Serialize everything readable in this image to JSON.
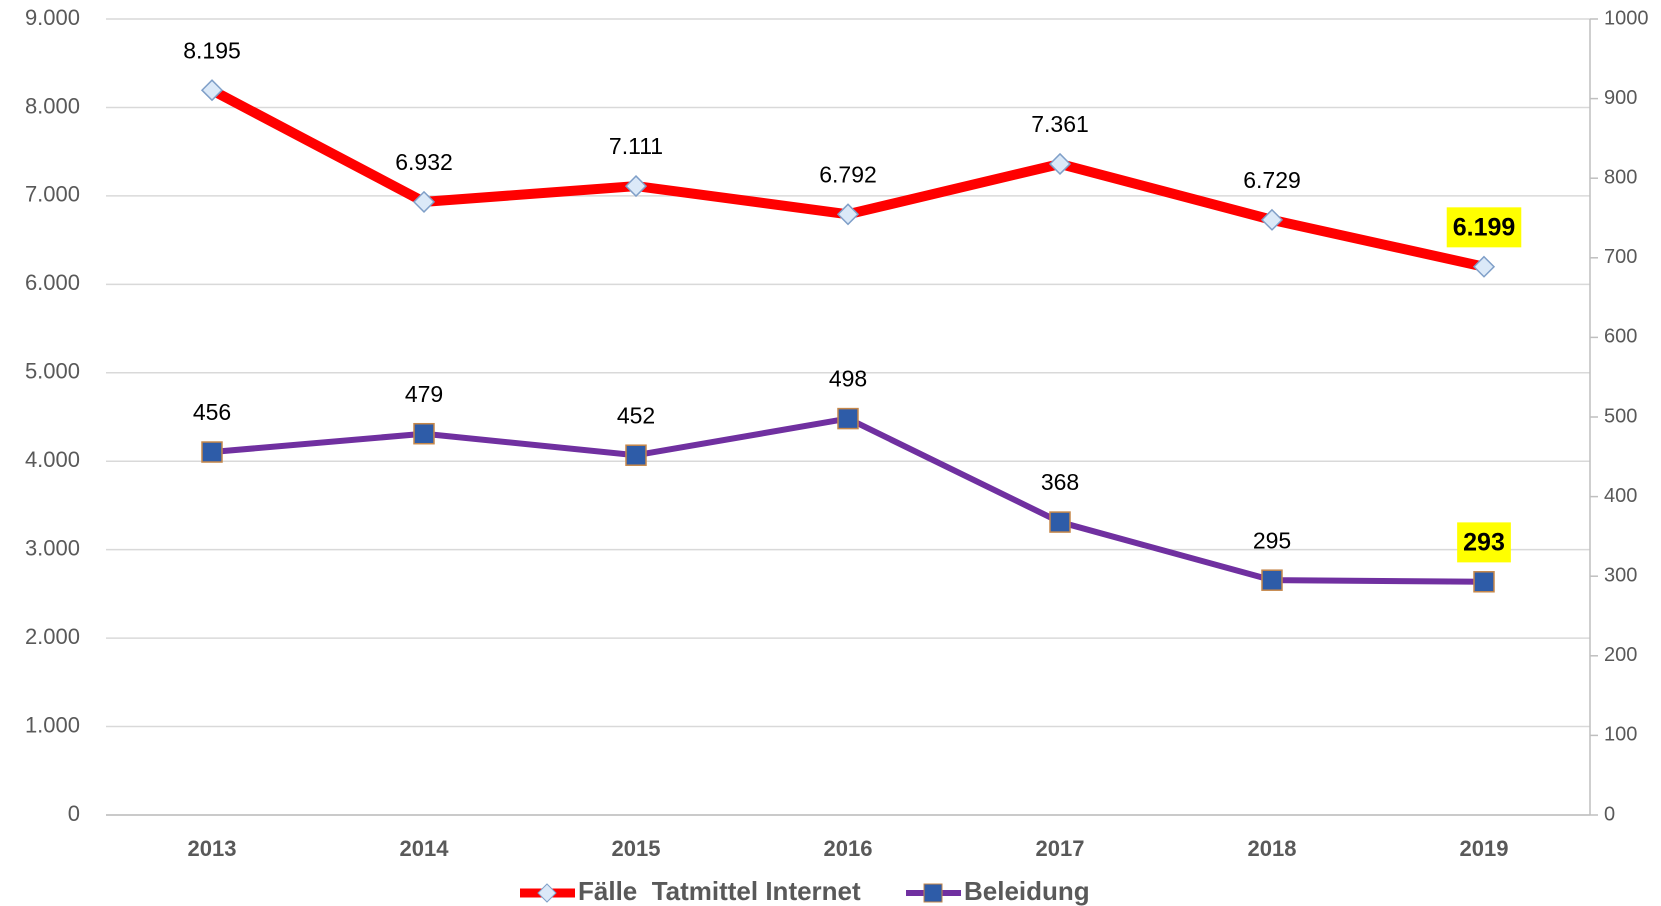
{
  "chart_data": {
    "type": "line",
    "categories": [
      "2013",
      "2014",
      "2015",
      "2016",
      "2017",
      "2018",
      "2019"
    ],
    "series": [
      {
        "name": "Fälle  Tatmittel Internet",
        "color": "#ff0000",
        "marker_color": "#dbe9f8",
        "values": [
          8195,
          6932,
          7111,
          6792,
          7361,
          6729,
          6199
        ],
        "value_labels": [
          "8.195",
          "6.932",
          "7.111",
          "6.792",
          "7.361",
          "6.729",
          "6.199"
        ]
      },
      {
        "name": "Beleidung",
        "color": "#7030a0",
        "marker_color": "#2e5ca8",
        "axis": "y2",
        "values": [
          456,
          479,
          452,
          498,
          368,
          295,
          293
        ]
      }
    ],
    "ylim": [
      0,
      9000
    ],
    "yticks": [
      {
        "value": 0,
        "label": "0"
      },
      {
        "value": 1000,
        "label": "1.000"
      },
      {
        "value": 2000,
        "label": "2.000"
      },
      {
        "value": 3000,
        "label": "3.000"
      },
      {
        "value": 4000,
        "label": "4.000"
      },
      {
        "value": 5000,
        "label": "5.000"
      },
      {
        "value": 6000,
        "label": "6.000"
      },
      {
        "value": 7000,
        "label": "7.000"
      },
      {
        "value": 8000,
        "label": "8.000"
      },
      {
        "value": 9000,
        "label": "9.000"
      }
    ],
    "y2lim": [
      0,
      1000
    ],
    "y2ticks": [
      0,
      100,
      200,
      300,
      400,
      500,
      600,
      700,
      800,
      900,
      1000
    ],
    "grid": true,
    "legend": "bottom",
    "highlight_color": "#ffff00"
  }
}
